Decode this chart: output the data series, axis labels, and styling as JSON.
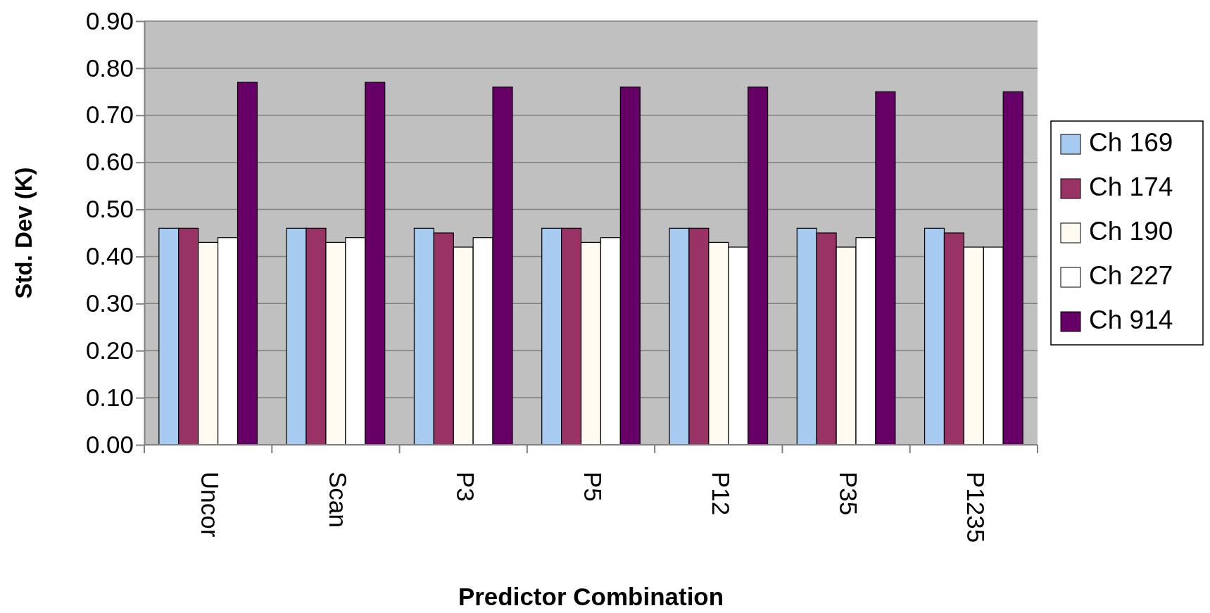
{
  "chart_data": {
    "type": "bar",
    "xlabel": "Predictor Combination",
    "ylabel": "Std. Dev (K)",
    "categories": [
      "Uncor",
      "Scan",
      "P3",
      "P5",
      "P12",
      "P35",
      "P1235"
    ],
    "series": [
      {
        "name": "Ch 169",
        "color": "#a6caf0",
        "values": [
          0.46,
          0.46,
          0.46,
          0.46,
          0.46,
          0.46,
          0.46
        ]
      },
      {
        "name": "Ch 174",
        "color": "#993366",
        "values": [
          0.46,
          0.46,
          0.45,
          0.46,
          0.46,
          0.45,
          0.45
        ]
      },
      {
        "name": "Ch 190",
        "color": "#fffbf0",
        "values": [
          0.43,
          0.43,
          0.42,
          0.43,
          0.43,
          0.42,
          0.42
        ]
      },
      {
        "name": "Ch 227",
        "color": "#ffffff",
        "values": [
          0.44,
          0.44,
          0.44,
          0.44,
          0.42,
          0.44,
          0.42
        ]
      },
      {
        "name": "Ch 914",
        "color": "#660066",
        "values": [
          0.77,
          0.77,
          0.76,
          0.76,
          0.76,
          0.75,
          0.75
        ]
      }
    ],
    "ylim": [
      0,
      0.9
    ],
    "yticks": [
      {
        "value": 0,
        "label": "0.00"
      },
      {
        "value": 0.1,
        "label": "0.10"
      },
      {
        "value": 0.2,
        "label": "0.20"
      },
      {
        "value": 0.3,
        "label": "0.30"
      },
      {
        "value": 0.4,
        "label": "0.40"
      },
      {
        "value": 0.5,
        "label": "0.50"
      },
      {
        "value": 0.6,
        "label": "0.60"
      },
      {
        "value": 0.7,
        "label": "0.70"
      },
      {
        "value": 0.8,
        "label": "0.80"
      },
      {
        "value": 0.9,
        "label": "0.90"
      }
    ],
    "grid": "y",
    "legend": "right"
  }
}
